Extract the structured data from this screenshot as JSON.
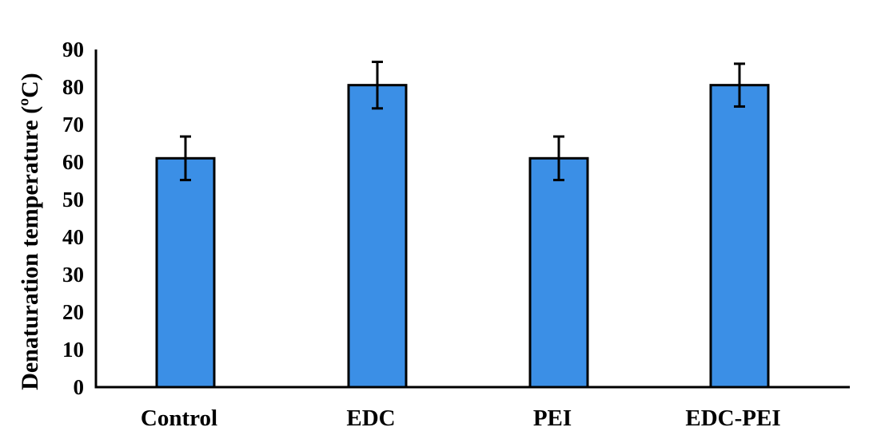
{
  "chart_data": {
    "type": "bar",
    "categories": [
      "Control",
      "EDC",
      "PEI",
      "EDC-PEI"
    ],
    "values": [
      61,
      80.5,
      61,
      80.5
    ],
    "error": [
      5.8,
      6.2,
      5.8,
      5.7
    ],
    "ylabel": "Denaturation temperature (ºC)",
    "ylim": [
      0,
      90
    ],
    "yticks": [
      0,
      10,
      20,
      30,
      40,
      50,
      60,
      70,
      80,
      90
    ],
    "grid": false,
    "colors": {
      "bar": "#3b8fe6",
      "bar_edge": "#000000",
      "axis": "#000000"
    }
  }
}
